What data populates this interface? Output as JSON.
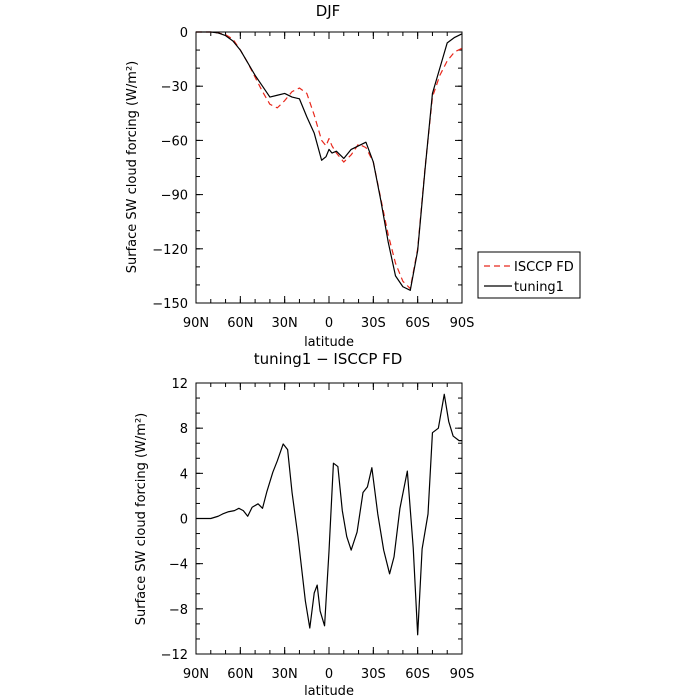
{
  "chart_data": [
    {
      "type": "line",
      "title": "DJF",
      "xlabel": "latitude",
      "ylabel": "Surface SW cloud forcing (W/m²)",
      "xlim": [
        90,
        -90
      ],
      "ylim": [
        -150,
        0
      ],
      "xticks": [
        90,
        60,
        30,
        0,
        -30,
        -60,
        -90
      ],
      "xtick_labels": [
        "90N",
        "60N",
        "30N",
        "0",
        "30S",
        "60S",
        "90S"
      ],
      "yticks": [
        0,
        -30,
        -60,
        -90,
        -120,
        -150
      ],
      "ytick_labels": [
        "0",
        "−30",
        "−60",
        "−90",
        "−120",
        "−150"
      ],
      "legend": "outside-right",
      "series": [
        {
          "name": "ISCCP FD",
          "color": "#e8281c",
          "dash": true,
          "x": [
            90,
            85,
            80,
            75,
            70,
            65,
            60,
            55,
            50,
            45,
            40,
            35,
            30,
            25,
            20,
            15,
            10,
            5,
            2,
            0,
            -2,
            -5,
            -10,
            -15,
            -20,
            -25,
            -30,
            -35,
            -40,
            -45,
            -50,
            -55,
            -60,
            -65,
            -70,
            -75,
            -80,
            -85,
            -90
          ],
          "values": [
            0,
            0,
            0,
            -0.5,
            -1.5,
            -4,
            -10,
            -17,
            -25,
            -33,
            -40,
            -42,
            -38,
            -33,
            -31,
            -34,
            -46,
            -60,
            -63,
            -59,
            -63,
            -67,
            -72,
            -68,
            -62,
            -64,
            -72,
            -92,
            -112,
            -128,
            -138,
            -142,
            -120,
            -75,
            -36,
            -24,
            -16,
            -11,
            -9
          ]
        },
        {
          "name": "tuning1",
          "color": "#000000",
          "dash": false,
          "x": [
            90,
            85,
            80,
            75,
            70,
            65,
            60,
            55,
            50,
            45,
            40,
            35,
            30,
            25,
            20,
            15,
            10,
            5,
            2,
            0,
            -2,
            -5,
            -10,
            -15,
            -20,
            -25,
            -30,
            -35,
            -40,
            -45,
            -50,
            -55,
            -60,
            -65,
            -70,
            -75,
            -80,
            -85,
            -90
          ],
          "values": [
            0,
            0,
            0,
            -0.5,
            -2,
            -5,
            -10,
            -17,
            -24,
            -30,
            -36,
            -35,
            -34,
            -36,
            -37,
            -47,
            -56,
            -71,
            -69,
            -65,
            -67,
            -66,
            -70,
            -65,
            -63,
            -61,
            -72,
            -93,
            -116,
            -135,
            -141,
            -143,
            -121,
            -76,
            -34,
            -20,
            -6,
            -3,
            -1
          ]
        }
      ]
    },
    {
      "type": "line",
      "title": "tuning1 − ISCCP FD",
      "xlabel": "latitude",
      "ylabel": "Surface SW cloud forcing (W/m²)",
      "xlim": [
        90,
        -90
      ],
      "ylim": [
        -12,
        12
      ],
      "xticks": [
        90,
        60,
        30,
        0,
        -30,
        -60,
        -90
      ],
      "xtick_labels": [
        "90N",
        "60N",
        "30N",
        "0",
        "30S",
        "60S",
        "90S"
      ],
      "yticks": [
        12,
        8,
        4,
        0,
        -4,
        -8,
        -12
      ],
      "ytick_labels": [
        "12",
        "8",
        "4",
        "0",
        "−4",
        "−8",
        "−12"
      ],
      "series": [
        {
          "name": "",
          "color": "#000000",
          "dash": false,
          "x": [
            90,
            85,
            80,
            75,
            72,
            68,
            64,
            61,
            58,
            55,
            52,
            48,
            45,
            42,
            38,
            35,
            31,
            28,
            25,
            21,
            16,
            13,
            10,
            8,
            6,
            3,
            0,
            -3,
            -6,
            -9,
            -12,
            -15,
            -19,
            -23,
            -26,
            -29,
            -33,
            -37,
            -41,
            -44,
            -48,
            -53,
            -57,
            -60,
            -63,
            -67,
            -70,
            -74,
            -78,
            -81,
            -84,
            -88,
            -90
          ],
          "values": [
            0,
            0,
            0,
            0.2,
            0.4,
            0.6,
            0.7,
            0.9,
            0.7,
            0.2,
            1.0,
            1.3,
            0.9,
            2.4,
            4.1,
            5.1,
            6.6,
            6.1,
            2.3,
            -1.6,
            -7.3,
            -9.7,
            -6.6,
            -5.9,
            -8.2,
            -9.5,
            -2.9,
            4.9,
            4.6,
            0.7,
            -1.6,
            -2.8,
            -1.2,
            2.3,
            2.8,
            4.5,
            0.4,
            -2.8,
            -4.9,
            -3.4,
            0.9,
            4.2,
            -2.6,
            -10.3,
            -2.7,
            0.4,
            7.6,
            8.0,
            11.0,
            8.6,
            7.3,
            6.9,
            6.9
          ]
        }
      ]
    }
  ]
}
